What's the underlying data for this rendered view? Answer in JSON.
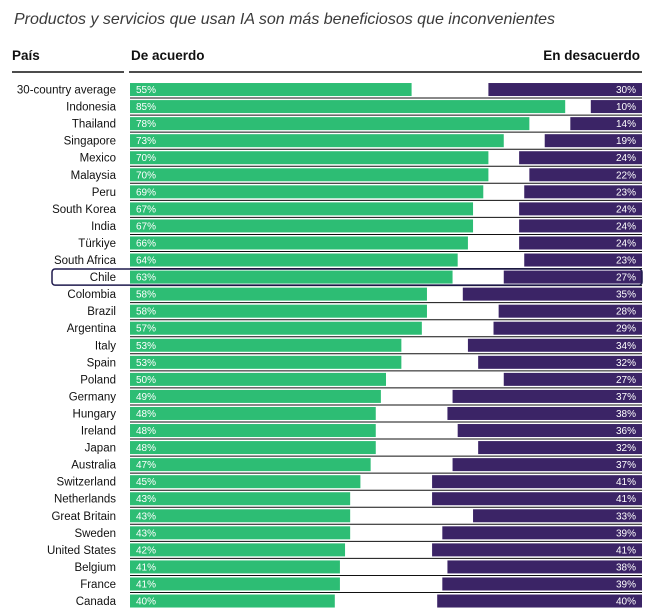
{
  "chart_data": {
    "type": "bar",
    "title": "Productos y servicios que usan IA son más beneficiosos que inconvenientes",
    "headers": {
      "country": "País",
      "agree": "De acuerdo",
      "disagree": "En desacuerdo"
    },
    "highlight": "Chile",
    "xlim": [
      0,
      100
    ],
    "colors": {
      "agree": "#2dbd74",
      "disagree": "#3b2466",
      "highlight_border": "#1f1a4d",
      "divider": "#111111"
    },
    "categories": [
      "30-country average",
      "Indonesia",
      "Thailand",
      "Singapore",
      "Mexico",
      "Malaysia",
      "Peru",
      "South Korea",
      "India",
      "Türkiye",
      "South Africa",
      "Chile",
      "Colombia",
      "Brazil",
      "Argentina",
      "Italy",
      "Spain",
      "Poland",
      "Germany",
      "Hungary",
      "Ireland",
      "Japan",
      "Australia",
      "Switzerland",
      "Netherlands",
      "Great Britain",
      "Sweden",
      "United States",
      "Belgium",
      "France",
      "Canada"
    ],
    "series": [
      {
        "name": "De acuerdo",
        "values": [
          55,
          85,
          78,
          73,
          70,
          70,
          69,
          67,
          67,
          66,
          64,
          63,
          58,
          58,
          57,
          53,
          53,
          50,
          49,
          48,
          48,
          48,
          47,
          45,
          43,
          43,
          43,
          42,
          41,
          41,
          40
        ],
        "labels": [
          "55%",
          "85%",
          "78%",
          "73%",
          "70%",
          "70%",
          "69%",
          "67%",
          "67%",
          "66%",
          "64%",
          "63%",
          "58%",
          "58%",
          "57%",
          "53%",
          "53%",
          "50%",
          "49%",
          "48%",
          "48%",
          "48%",
          "47%",
          "45%",
          "43%",
          "43%",
          "43%",
          "42%",
          "41%",
          "41%",
          "40%"
        ]
      },
      {
        "name": "En desacuerdo",
        "values": [
          30,
          10,
          14,
          19,
          24,
          22,
          23,
          24,
          24,
          24,
          23,
          27,
          35,
          28,
          29,
          34,
          32,
          27,
          37,
          38,
          36,
          32,
          37,
          41,
          41,
          33,
          39,
          41,
          38,
          39,
          40
        ],
        "labels": [
          "30%",
          "10%",
          "14%",
          "19%",
          "24%",
          "22%",
          "23%",
          "24%",
          "24%",
          "24%",
          "23%",
          "27%",
          "35%",
          "28%",
          "29%",
          "34%",
          "32%",
          "27%",
          "37%",
          "38%",
          "36%",
          "32%",
          "37%",
          "41%",
          "41%",
          "33%",
          "39%",
          "41%",
          "38%",
          "39%",
          "40%"
        ]
      }
    ]
  }
}
